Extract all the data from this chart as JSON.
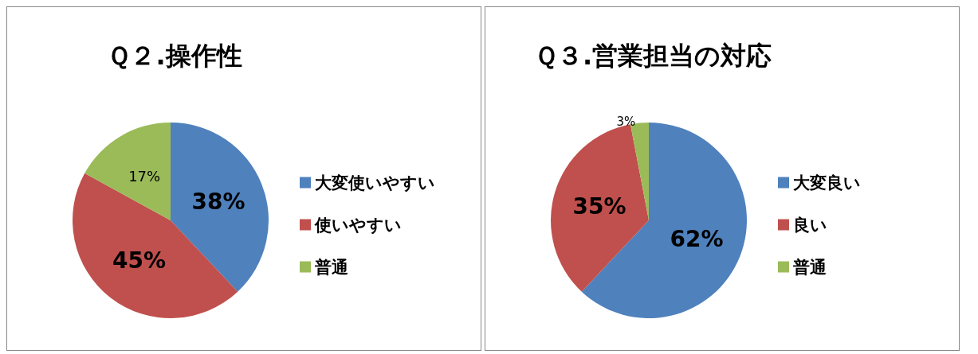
{
  "chart_data": [
    {
      "type": "pie",
      "title": "Ｑ２.操作性",
      "categories": [
        "大変使いやすい",
        "使いやすい",
        "普通"
      ],
      "values": [
        38,
        45,
        17
      ],
      "colors": [
        "#4f81bd",
        "#c0504d",
        "#9bbb59"
      ],
      "value_labels": [
        "38%",
        "45%",
        "17%"
      ],
      "legend": "right"
    },
    {
      "type": "pie",
      "title": "Ｑ３.営業担当の対応",
      "categories": [
        "大変良い",
        "良い",
        "普通"
      ],
      "values": [
        62,
        35,
        3
      ],
      "colors": [
        "#4f81bd",
        "#c0504d",
        "#9bbb59"
      ],
      "value_labels": [
        "62%",
        "35%",
        "3%"
      ],
      "legend": "right"
    }
  ]
}
